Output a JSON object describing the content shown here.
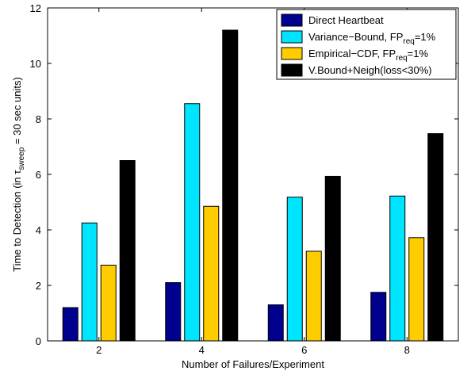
{
  "chart_data": {
    "type": "bar",
    "categories": [
      "2",
      "4",
      "6",
      "8"
    ],
    "xlabel": "Number of Failures/Experiment",
    "ylabel": {
      "prefix": "Time to Detection (in ",
      "symbol": "τ",
      "subscript": "sweep",
      "suffix": " = 30 sec units)"
    },
    "ylim": [
      0,
      12
    ],
    "yticks": [
      0,
      2,
      4,
      6,
      8,
      10,
      12
    ],
    "grid": false,
    "legend_position": "top-right",
    "series": [
      {
        "name": "Direct Heartbeat",
        "legend": {
          "main": "Direct Heartbeat",
          "sub": "",
          "tail": ""
        },
        "color": "#00008f",
        "values": [
          1.2,
          2.1,
          1.3,
          1.75
        ]
      },
      {
        "name": "Variance-Bound, FPreq=1%",
        "legend": {
          "main": "Variance−Bound, FP",
          "sub": "req",
          "tail": "=1%"
        },
        "color": "#00e5ff",
        "values": [
          4.25,
          8.55,
          5.18,
          5.22
        ]
      },
      {
        "name": "Empirical-CDF, FPreq=1%",
        "legend": {
          "main": "Empirical−CDF, FP",
          "sub": "req",
          "tail": "=1%"
        },
        "color": "#ffcc00",
        "values": [
          2.73,
          4.85,
          3.23,
          3.72
        ]
      },
      {
        "name": "V.Bound+Neigh(loss<30%)",
        "legend": {
          "main": "V.Bound+Neigh(loss<30%)",
          "sub": "",
          "tail": ""
        },
        "color": "#000000",
        "values": [
          6.5,
          11.2,
          5.93,
          7.47
        ]
      }
    ]
  }
}
